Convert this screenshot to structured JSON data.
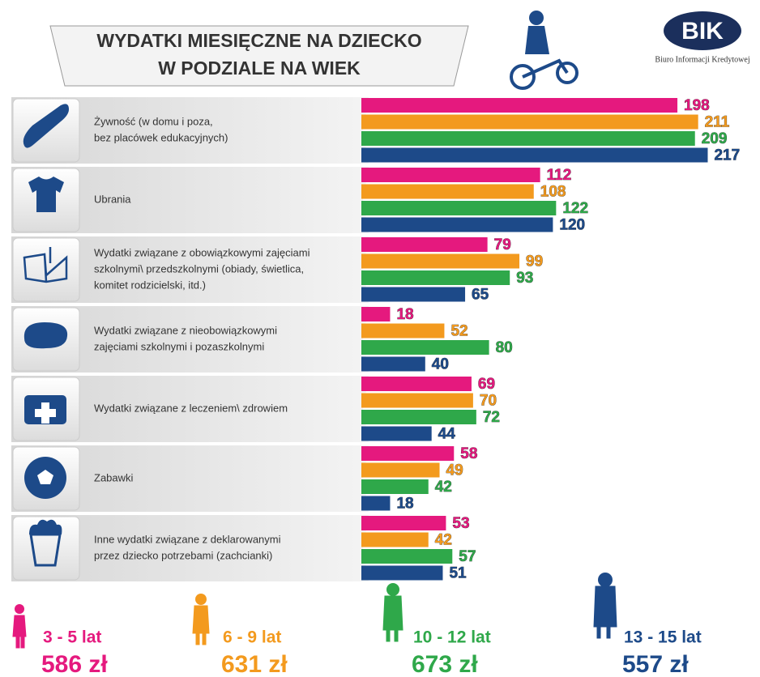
{
  "logo": {
    "text": "BIK",
    "subtitle": "Biuro Informacji Kredytowej"
  },
  "chart_data": {
    "type": "bar",
    "title": [
      "WYDATKI MIESIĘCZNE NA DZIECKO",
      "W PODZIALE NA WIEK"
    ],
    "categories": [
      [
        "Żywność (w domu i poza,",
        "bez placówek edukacyjnych)"
      ],
      [
        "Ubrania"
      ],
      [
        "Wydatki związane z obowiązkowymi zajęciami",
        "szkolnymi\\ przedszkolnymi (obiady, świetlica,",
        "komitet rodzicielski, itd.)"
      ],
      [
        "Wydatki związane z nieobowiązkowymi",
        "zajęciami szkolnymi i pozaszkolnymi"
      ],
      [
        "Wydatki związane z leczeniem\\ zdrowiem"
      ],
      [
        "Zabawki"
      ],
      [
        "Inne wydatki związane z deklarowanymi",
        "przez dziecko potrzebami (zachcianki)"
      ]
    ],
    "series": [
      {
        "name": "3 - 5 lat",
        "total": "586 zł",
        "color": "#e5197e",
        "values": [
          198,
          112,
          79,
          18,
          69,
          58,
          53
        ]
      },
      {
        "name": "6 - 9 lat",
        "total": "631 zł",
        "color": "#f39a1e",
        "values": [
          211,
          108,
          99,
          52,
          70,
          49,
          42
        ]
      },
      {
        "name": "10 - 12 lat",
        "total": "673 zł",
        "color": "#2fa84a",
        "values": [
          209,
          122,
          93,
          80,
          72,
          42,
          57
        ]
      },
      {
        "name": "13 - 15 lat",
        "total": "557 zł",
        "color": "#1d4a89",
        "values": [
          217,
          120,
          65,
          40,
          44,
          18,
          51
        ]
      }
    ]
  }
}
